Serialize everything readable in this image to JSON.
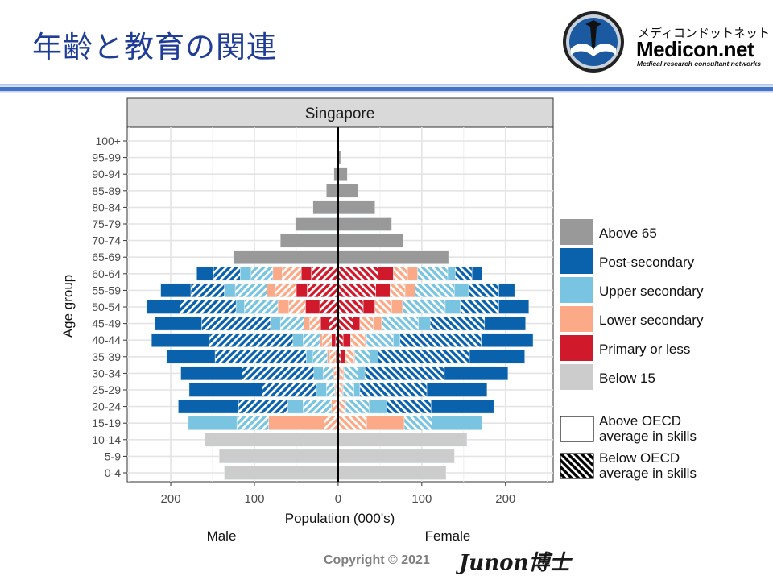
{
  "slide": {
    "title": "年齢と教育の関連",
    "logo": {
      "jp": "メディコンドットネット",
      "name": "Medicon.net",
      "tagline": "Medical research consultant networks"
    },
    "copyright": "Copyright © 2021",
    "signature": "Junon博士"
  },
  "chart_data": {
    "type": "bar",
    "subtype": "population-pyramid",
    "facet_title": "Singapore",
    "xlabel": "Population (000's)",
    "ylabel": "Age group",
    "side_labels": {
      "left": "Male",
      "right": "Female"
    },
    "xticks": [
      "200",
      "100",
      "0",
      "100",
      "200"
    ],
    "xtick_values": [
      -200,
      -100,
      0,
      100,
      200
    ],
    "xlim": [
      -252,
      257
    ],
    "grid": true,
    "legend_placement": "right",
    "legend": [
      {
        "key": "above_65",
        "label": "Above 65",
        "color": "#999999"
      },
      {
        "key": "post_secondary",
        "label": "Post-secondary",
        "color": "#0a62ad"
      },
      {
        "key": "upper_secondary",
        "label": "Upper secondary",
        "color": "#79c4e0"
      },
      {
        "key": "lower_secondary",
        "label": "Lower secondary",
        "color": "#fca987"
      },
      {
        "key": "primary_or_less",
        "label": "Primary or less",
        "color": "#d0192b"
      },
      {
        "key": "below_15",
        "label": "Below 15",
        "color": "#cccccc"
      }
    ],
    "skill_legend": [
      {
        "key": "above",
        "label1": "Above OECD",
        "label2": "average in skills",
        "pattern": "solid"
      },
      {
        "key": "below",
        "label1": "Below OECD",
        "label2": "average in skills",
        "pattern": "hatched"
      }
    ],
    "age_groups": [
      "100+",
      "95-99",
      "90-94",
      "85-89",
      "80-84",
      "75-79",
      "70-74",
      "65-69",
      "60-64",
      "55-59",
      "50-54",
      "45-49",
      "40-44",
      "35-39",
      "30-34",
      "25-29",
      "20-24",
      "15-19",
      "10-14",
      "5-9",
      "0-4"
    ],
    "male": {
      "above_65": [
        0,
        1,
        5,
        14,
        30,
        51,
        69,
        125,
        0,
        0,
        0,
        0,
        0,
        0,
        0,
        0,
        0,
        0,
        0,
        0,
        0
      ],
      "below_15": [
        0,
        0,
        0,
        0,
        0,
        0,
        0,
        0,
        0,
        0,
        0,
        0,
        0,
        0,
        0,
        0,
        0,
        0,
        159,
        142,
        136
      ],
      "primary_or_less_below": [
        0,
        0,
        0,
        0,
        0,
        0,
        0,
        0,
        32,
        37,
        22,
        11,
        3,
        2,
        1,
        1,
        0.5,
        0,
        0,
        0,
        0
      ],
      "primary_or_less_above": [
        0,
        0,
        0,
        0,
        0,
        0,
        0,
        0,
        12,
        13,
        17,
        10,
        5,
        1,
        1,
        1,
        0.5,
        0,
        0,
        0,
        0
      ],
      "lower_secondary_below": [
        0,
        0,
        0,
        0,
        0,
        0,
        0,
        0,
        23,
        25,
        20,
        13,
        11,
        7,
        3,
        1,
        5,
        17,
        0,
        0,
        0
      ],
      "lower_secondary_above": [
        0,
        0,
        0,
        0,
        0,
        0,
        0,
        0,
        11,
        10,
        13,
        7,
        3,
        3,
        1,
        1,
        2,
        66,
        0,
        0,
        0
      ],
      "upper_secondary_below": [
        0,
        0,
        0,
        0,
        0,
        0,
        0,
        0,
        26,
        38,
        40,
        28,
        20,
        17,
        12,
        10,
        34,
        38,
        0,
        0,
        0
      ],
      "upper_secondary_above": [
        0,
        0,
        0,
        0,
        0,
        0,
        0,
        0,
        13,
        13,
        10,
        12,
        12,
        8,
        11,
        12,
        18,
        58,
        0,
        0,
        0
      ],
      "post_secondary_below": [
        0,
        0,
        0,
        0,
        0,
        0,
        0,
        0,
        32,
        40,
        67,
        82,
        100,
        109,
        86,
        65,
        59,
        0,
        0,
        0,
        0
      ],
      "post_secondary_above": [
        0,
        0,
        0,
        0,
        0,
        0,
        0,
        0,
        20,
        36,
        40,
        56,
        69,
        58,
        73,
        87,
        72,
        0,
        0,
        0,
        0
      ]
    },
    "female": {
      "above_65": [
        0,
        3,
        11,
        24,
        44,
        64,
        78,
        132,
        0,
        0,
        0,
        0,
        0,
        0,
        0,
        0,
        0,
        0,
        0,
        0,
        0
      ],
      "below_15": [
        0,
        0,
        0,
        0,
        0,
        0,
        0,
        0,
        0,
        0,
        0,
        0,
        0,
        0,
        0,
        0,
        0,
        0,
        154,
        139,
        129
      ],
      "primary_or_less_below": [
        0,
        0,
        0,
        0,
        0,
        0,
        0,
        0,
        48,
        45,
        30,
        18,
        6,
        3,
        1,
        1,
        0.5,
        0,
        0,
        0,
        0
      ],
      "primary_or_less_above": [
        0,
        0,
        0,
        0,
        0,
        0,
        0,
        0,
        18,
        17,
        14,
        8,
        9,
        6,
        1,
        0,
        0.5,
        0,
        0,
        0,
        0
      ],
      "lower_secondary_below": [
        0,
        0,
        0,
        0,
        0,
        0,
        0,
        0,
        17,
        18,
        20,
        16,
        17,
        10,
        4,
        4,
        7,
        34,
        0,
        0,
        0
      ],
      "lower_secondary_above": [
        0,
        0,
        0,
        0,
        0,
        0,
        0,
        0,
        12,
        12,
        13,
        10,
        2,
        1,
        1,
        1,
        1,
        45,
        0,
        0,
        0
      ],
      "upper_secondary_below": [
        0,
        0,
        0,
        0,
        0,
        0,
        0,
        0,
        36,
        47,
        51,
        44,
        32,
        18,
        17,
        13,
        28,
        33,
        0,
        0,
        0
      ],
      "upper_secondary_above": [
        0,
        0,
        0,
        0,
        0,
        0,
        0,
        0,
        9,
        17,
        18,
        14,
        8,
        10,
        8,
        7,
        21,
        60,
        0,
        0,
        0
      ],
      "post_secondary_below": [
        0,
        0,
        0,
        0,
        0,
        0,
        0,
        0,
        20,
        36,
        46,
        65,
        97,
        109,
        95,
        80,
        53,
        0,
        0,
        0,
        0
      ],
      "post_secondary_above": [
        0,
        0,
        0,
        0,
        0,
        0,
        0,
        0,
        12,
        19,
        36,
        49,
        62,
        66,
        76,
        72,
        75,
        0,
        0,
        0,
        0
      ]
    }
  }
}
